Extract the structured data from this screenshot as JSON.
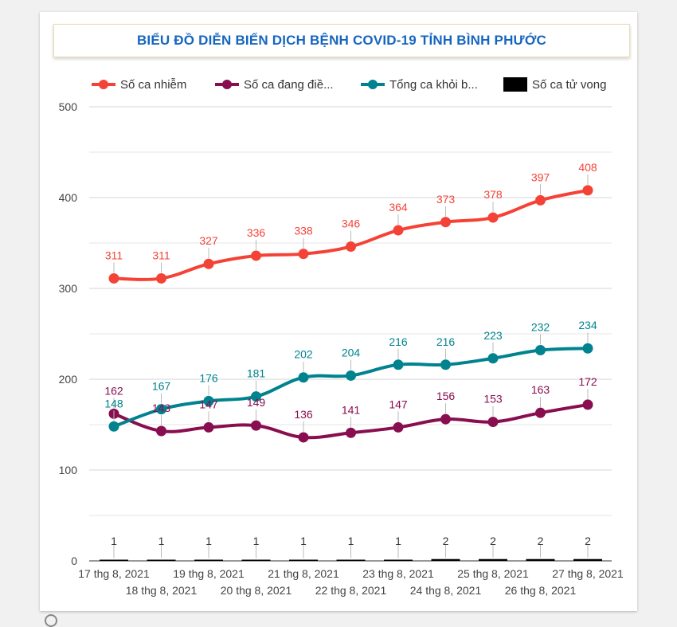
{
  "title": "BIỂU ĐỒ DIỄN BIẾN DỊCH BỆNH COVID-19 TỈNH BÌNH PHƯỚC",
  "chart_data": {
    "type": "line",
    "title": "BIỂU ĐỒ DIỄN BIẾN DỊCH BỆNH COVID-19 TỈNH BÌNH PHƯỚC",
    "xlabel": "",
    "ylabel": "",
    "ylim": [
      0,
      500
    ],
    "yticks": [
      0,
      100,
      200,
      300,
      400,
      500
    ],
    "grid": true,
    "legend_position": "top",
    "categories": [
      "17 thg 8, 2021",
      "18 thg 8, 2021",
      "19 thg 8, 2021",
      "20 thg 8, 2021",
      "21 thg 8, 2021",
      "22 thg 8, 2021",
      "23 thg 8, 2021",
      "24 thg 8, 2021",
      "25 thg 8, 2021",
      "26 thg 8, 2021",
      "27 thg 8, 2021"
    ],
    "series": [
      {
        "name": "Số ca nhiễm",
        "legend_label": "Số ca nhiễm",
        "color": "#f44336",
        "style": "line",
        "values": [
          311,
          311,
          327,
          336,
          338,
          346,
          364,
          373,
          378,
          397,
          408
        ]
      },
      {
        "name": "Số ca đang điều trị",
        "legend_label": "Số ca đang điề...",
        "color": "#880e4f",
        "style": "line",
        "values": [
          162,
          143,
          147,
          149,
          136,
          141,
          147,
          156,
          153,
          163,
          172
        ]
      },
      {
        "name": "Tổng ca khỏi bệnh",
        "legend_label": "Tổng ca khỏi b...",
        "color": "#00838f",
        "style": "line",
        "values": [
          148,
          167,
          176,
          181,
          202,
          204,
          216,
          216,
          223,
          232,
          234
        ]
      },
      {
        "name": "Số ca tử vong",
        "legend_label": "Số ca tử vong",
        "color": "#000000",
        "style": "bar",
        "values": [
          1,
          1,
          1,
          1,
          1,
          1,
          1,
          2,
          2,
          2,
          2
        ]
      }
    ]
  }
}
